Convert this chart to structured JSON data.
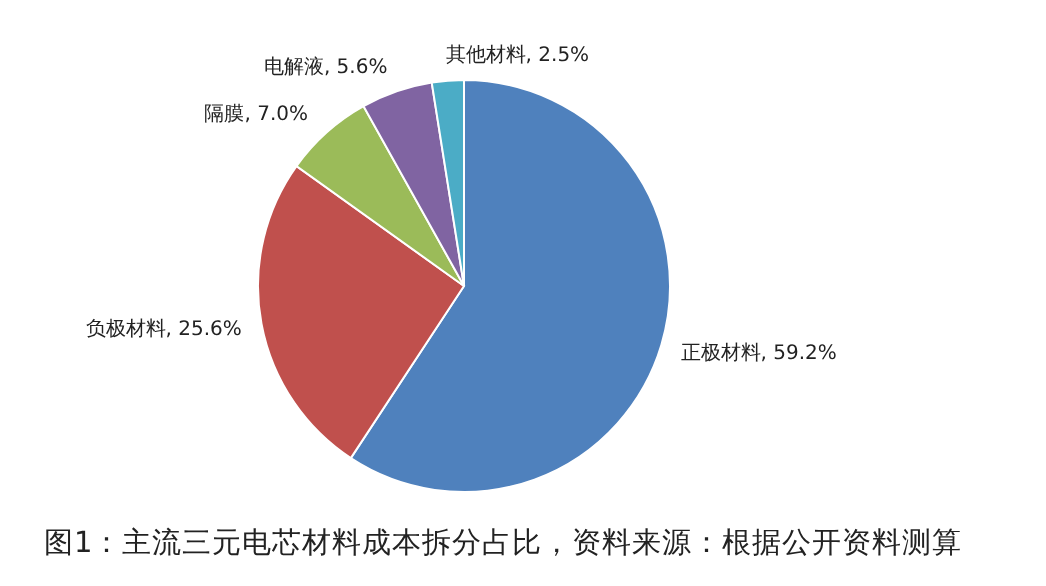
{
  "chart_data": {
    "type": "pie",
    "categories": [
      "正极材料",
      "负极材料",
      "隔膜",
      "电解液",
      "其他材料"
    ],
    "values": [
      59.2,
      25.6,
      7.0,
      5.6,
      2.5
    ],
    "value_labels": [
      "59.2%",
      "25.6%",
      "7.0%",
      "5.6%",
      "2.5%"
    ],
    "colors": [
      "#4f81bd",
      "#c0504d",
      "#9bbb59",
      "#8064a2",
      "#4bacc6"
    ],
    "annotations": [
      "图1：主流三元电芯材料成本拆分占比，资料来源：根据公开资料测算"
    ]
  }
}
